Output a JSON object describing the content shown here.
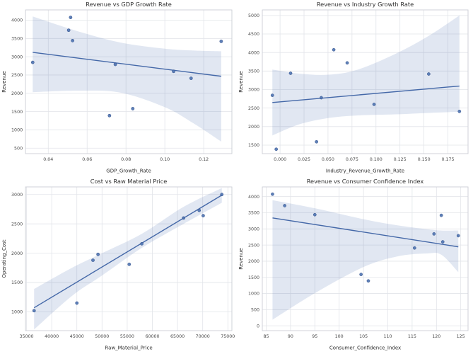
{
  "figure": {
    "background": "#ffffff",
    "layout": "2x2-grid-of-scatter-regression-plots"
  },
  "style": {
    "point_color": "#4c72b0",
    "point_edge_color": "#36538c",
    "line_color": "#4468a8",
    "band_color": "#4c72b0",
    "band_opacity": 0.17,
    "grid_color": "#e2e4e9",
    "spine_color": "#cbced5",
    "plot_background": "#ffffff",
    "title_color": "#2e2e2e",
    "tick_color": "#474747"
  },
  "chart_data": [
    {
      "type": "scatter",
      "title": "Revenue vs GDP Growth Rate",
      "xlabel": "GDP_Growth_Rate",
      "ylabel": "Revenue",
      "xlim": [
        0.0283,
        0.1345
      ],
      "ylim": [
        350,
        4280
      ],
      "xticks": [
        0.04,
        0.06,
        0.08,
        0.1,
        0.12
      ],
      "xtick_labels": [
        "0.04",
        "0.06",
        "0.08",
        "0.10",
        "0.12"
      ],
      "yticks": [
        500,
        1000,
        1500,
        2000,
        2500,
        3000,
        3500,
        4000
      ],
      "ytick_labels": [
        "500",
        "1000",
        "1500",
        "2000",
        "2500",
        "3000",
        "3500",
        "4000"
      ],
      "grid": true,
      "legend": null,
      "points": [
        [
          0.032,
          2845
        ],
        [
          0.0505,
          3725
        ],
        [
          0.0515,
          4075
        ],
        [
          0.0525,
          3440
        ],
        [
          0.0715,
          1390
        ],
        [
          0.0745,
          2790
        ],
        [
          0.0835,
          1580
        ],
        [
          0.1045,
          2600
        ],
        [
          0.1135,
          2410
        ],
        [
          0.129,
          3420
        ]
      ],
      "regression": {
        "x1": 0.032,
        "y1": 3120,
        "x2": 0.129,
        "y2": 2465
      },
      "ci_band": [
        [
          0.032,
          2030,
          4100
        ],
        [
          0.055,
          2070,
          3700
        ],
        [
          0.077,
          2020,
          3390
        ],
        [
          0.1,
          1620,
          3220
        ],
        [
          0.115,
          1170,
          3170
        ],
        [
          0.129,
          680,
          3150
        ]
      ]
    },
    {
      "type": "scatter",
      "title": "Revenue vs Industry Growth Rate",
      "xlabel": "Industry_Revenue_Growth_Rate",
      "ylabel": "Revenue",
      "xlim": [
        -0.0185,
        0.196
      ],
      "ylim": [
        1270,
        5150
      ],
      "xticks": [
        0.0,
        0.025,
        0.05,
        0.075,
        0.1,
        0.125,
        0.15,
        0.175
      ],
      "xtick_labels": [
        "0.000",
        "0.025",
        "0.050",
        "0.075",
        "0.100",
        "0.125",
        "0.150",
        "0.175"
      ],
      "yticks": [
        1500,
        2000,
        2500,
        3000,
        3500,
        4000,
        4500,
        5000
      ],
      "ytick_labels": [
        "1500",
        "2000",
        "2500",
        "3000",
        "3500",
        "4000",
        "4500",
        "5000"
      ],
      "grid": true,
      "legend": null,
      "points": [
        [
          -0.008,
          2845
        ],
        [
          -0.004,
          1390
        ],
        [
          0.011,
          3440
        ],
        [
          0.038,
          1590
        ],
        [
          0.043,
          2780
        ],
        [
          0.056,
          4075
        ],
        [
          0.07,
          3720
        ],
        [
          0.098,
          2600
        ],
        [
          0.155,
          3420
        ],
        [
          0.187,
          2410
        ]
      ],
      "regression": {
        "x1": -0.008,
        "y1": 2650,
        "x2": 0.187,
        "y2": 3095
      },
      "ci_band": [
        [
          -0.008,
          1760,
          3540
        ],
        [
          0.02,
          2060,
          3430
        ],
        [
          0.05,
          2230,
          3400
        ],
        [
          0.08,
          2300,
          3530
        ],
        [
          0.12,
          2330,
          3960
        ],
        [
          0.155,
          2370,
          4450
        ],
        [
          0.187,
          2400,
          5000
        ]
      ]
    },
    {
      "type": "scatter",
      "title": "Cost vs Raw Material Price",
      "xlabel": "Raw_Material_Price",
      "ylabel": "Operating_Cost",
      "xlim": [
        34800,
        75800
      ],
      "ylim": [
        680,
        3130
      ],
      "xticks": [
        35000,
        40000,
        45000,
        50000,
        55000,
        60000,
        65000,
        70000,
        75000
      ],
      "xtick_labels": [
        "35000",
        "40000",
        "45000",
        "50000",
        "55000",
        "60000",
        "65000",
        "70000",
        "75000"
      ],
      "yticks": [
        1000,
        1500,
        2000,
        2500,
        3000
      ],
      "ytick_labels": [
        "1000",
        "1500",
        "2000",
        "2500",
        "3000"
      ],
      "grid": true,
      "legend": null,
      "points": [
        [
          36500,
          1020
        ],
        [
          45000,
          1150
        ],
        [
          48200,
          1880
        ],
        [
          49200,
          1980
        ],
        [
          55400,
          1810
        ],
        [
          57900,
          2160
        ],
        [
          66200,
          2600
        ],
        [
          69300,
          2730
        ],
        [
          70100,
          2640
        ],
        [
          73800,
          3000
        ]
      ],
      "regression": {
        "x1": 36500,
        "y1": 1070,
        "x2": 73800,
        "y2": 2990
      },
      "ci_band": [
        [
          36500,
          700,
          1390
        ],
        [
          44000,
          1270,
          1750
        ],
        [
          50000,
          1620,
          2000
        ],
        [
          57900,
          2090,
          2330
        ],
        [
          66200,
          2500,
          2790
        ],
        [
          73800,
          2860,
          3110
        ]
      ]
    },
    {
      "type": "scatter",
      "title": "Revenue vs Consumer Confidence Index",
      "xlabel": "Consumer_Confidence_Index",
      "ylabel": "Revenue",
      "xlim": [
        84.2,
        126.5
      ],
      "ylim": [
        -150,
        4300
      ],
      "xticks": [
        85,
        90,
        95,
        100,
        105,
        110,
        115,
        120,
        125
      ],
      "xtick_labels": [
        "85",
        "90",
        "95",
        "100",
        "105",
        "110",
        "115",
        "120",
        "125"
      ],
      "yticks": [
        0,
        500,
        1000,
        1500,
        2000,
        2500,
        3000,
        3500,
        4000
      ],
      "ytick_labels": [
        "0",
        "500",
        "1000",
        "1500",
        "2000",
        "2500",
        "3000",
        "3500",
        "4000"
      ],
      "grid": true,
      "legend": null,
      "points": [
        [
          86.3,
          4075
        ],
        [
          88.8,
          3720
        ],
        [
          95,
          3440
        ],
        [
          104.5,
          1590
        ],
        [
          106,
          1390
        ],
        [
          115.5,
          2410
        ],
        [
          119.5,
          2845
        ],
        [
          121,
          3420
        ],
        [
          121.3,
          2600
        ],
        [
          124.5,
          2790
        ]
      ],
      "regression": {
        "x1": 86.3,
        "y1": 3340,
        "x2": 124.5,
        "y2": 2445
      },
      "ci_band": [
        [
          86.3,
          190,
          3890
        ],
        [
          95,
          1010,
          3640
        ],
        [
          105,
          1820,
          3300
        ],
        [
          112,
          2150,
          3110
        ],
        [
          118,
          2240,
          2990
        ],
        [
          121,
          2200,
          2950
        ],
        [
          124.5,
          1660,
          2950
        ]
      ]
    }
  ]
}
